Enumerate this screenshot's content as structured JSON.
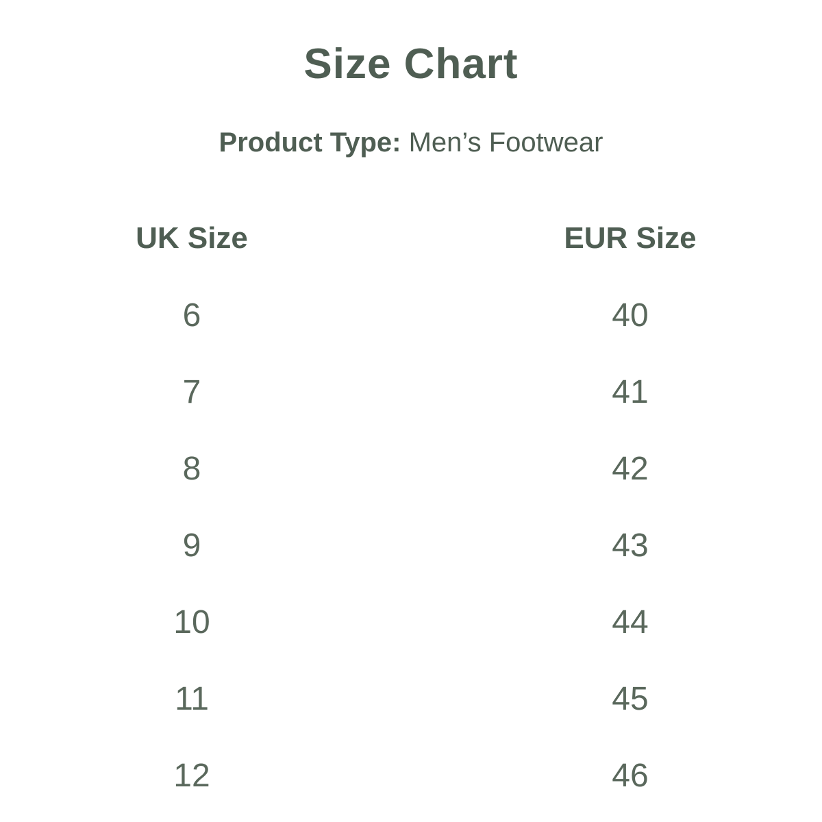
{
  "page": {
    "title": "Size Chart",
    "product_type_label": "Product Type:",
    "product_type_value": "Men’s Footwear"
  },
  "colors": {
    "background": "#ffffff",
    "heading_text": "#4f5e53",
    "value_text": "#5a685c"
  },
  "chart_data": {
    "type": "table",
    "title": "Size Chart",
    "subtitle": "Product Type: Men’s Footwear",
    "columns": [
      "UK Size",
      "EUR Size"
    ],
    "rows": [
      {
        "uk": "6",
        "eur": "40"
      },
      {
        "uk": "7",
        "eur": "41"
      },
      {
        "uk": "8",
        "eur": "42"
      },
      {
        "uk": "9",
        "eur": "43"
      },
      {
        "uk": "10",
        "eur": "44"
      },
      {
        "uk": "11",
        "eur": "45"
      },
      {
        "uk": "12",
        "eur": "46"
      }
    ]
  }
}
